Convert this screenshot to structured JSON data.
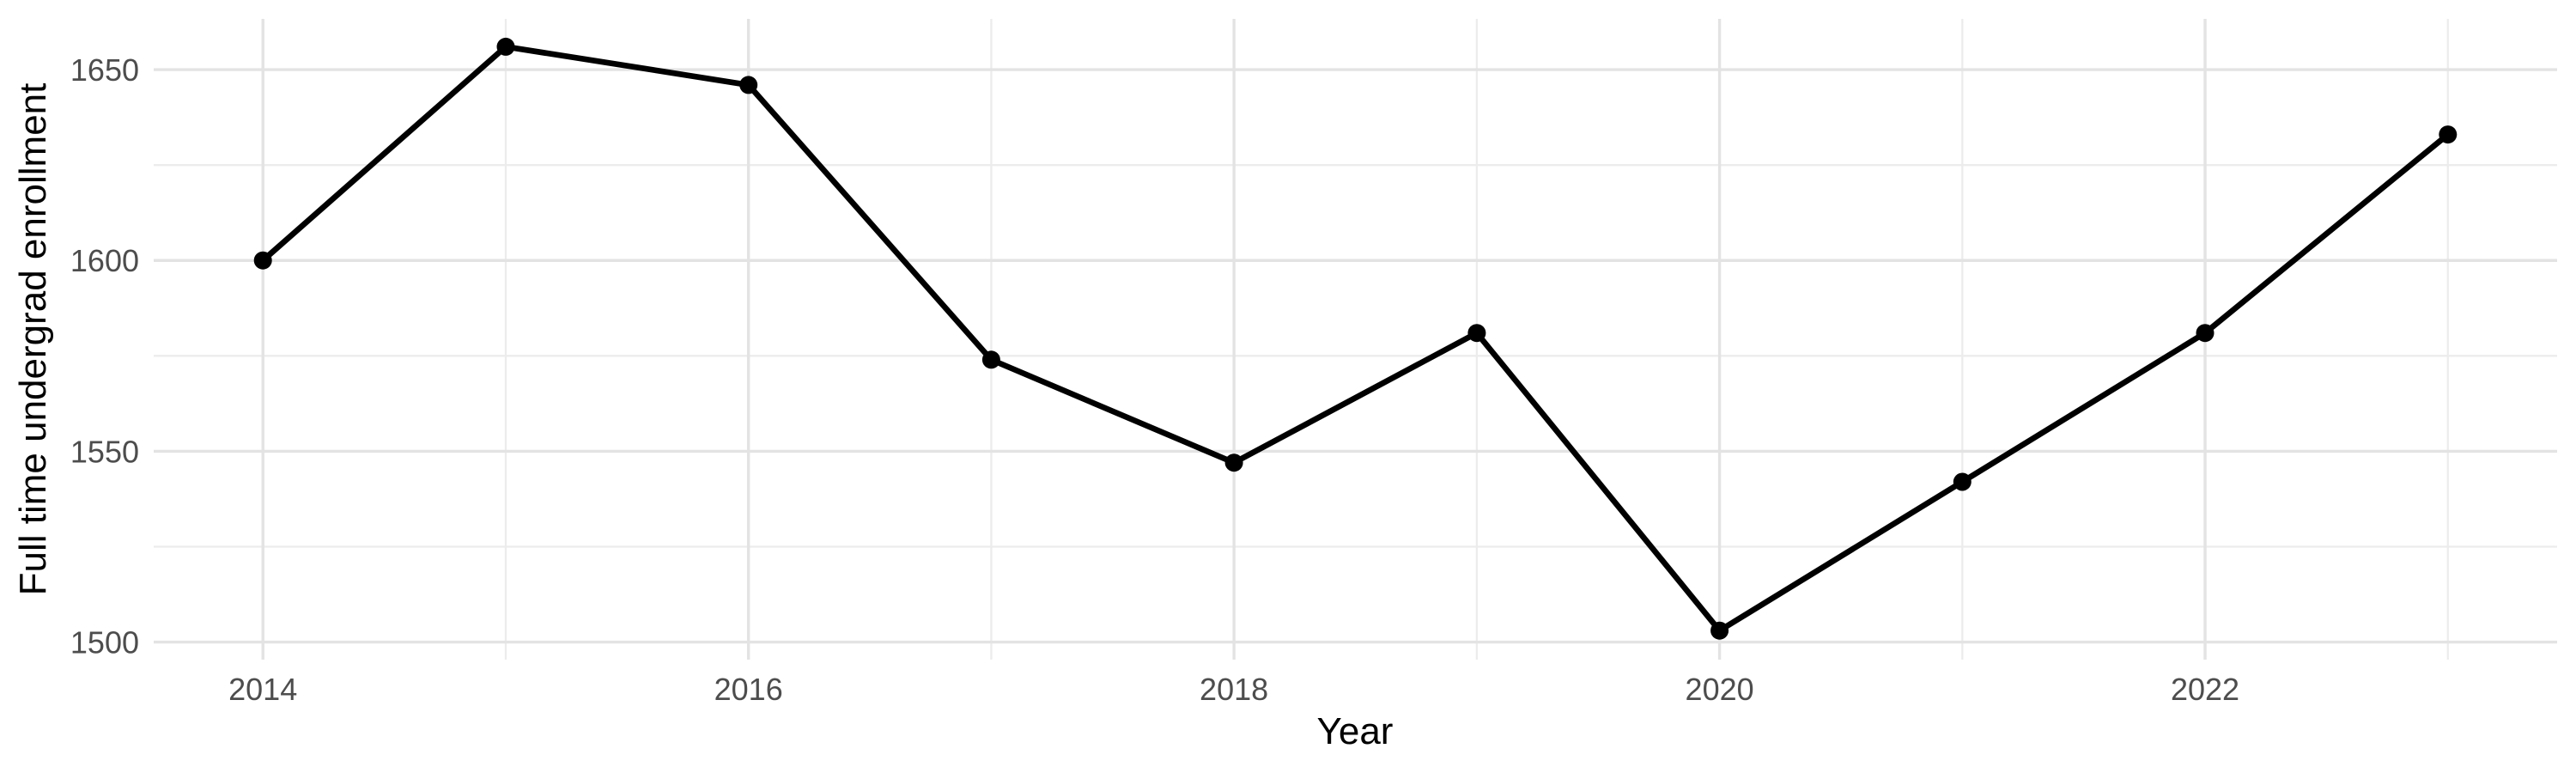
{
  "chart_data": {
    "type": "line",
    "title": "",
    "xlabel": "Year",
    "ylabel": "Full time undergrad enrollment",
    "series": [
      {
        "name": "Full time undergrad enrollment",
        "x": [
          2014,
          2015,
          2016,
          2017,
          2018,
          2019,
          2020,
          2021,
          2022,
          2023
        ],
        "y": [
          1600,
          1656,
          1646,
          1574,
          1547,
          1581,
          1503,
          1542,
          1581,
          1633
        ]
      }
    ],
    "x_tick_labels": [
      "2014",
      "2016",
      "2018",
      "2020",
      "2022"
    ],
    "x_ticks": [
      2014,
      2016,
      2018,
      2020,
      2022
    ],
    "x_minor_gridlines": [
      2015,
      2017,
      2019,
      2021,
      2023
    ],
    "y_tick_labels": [
      "1500",
      "1550",
      "1600",
      "1650"
    ],
    "y_ticks": [
      1500,
      1550,
      1600,
      1650
    ],
    "y_minor_gridlines": [
      1525,
      1575,
      1625
    ],
    "xlim": [
      2013.55,
      2023.45
    ],
    "ylim": [
      1495.4,
      1663.3
    ],
    "grid": "major+minor",
    "legend_position": "none",
    "point_marker": "filled-circle",
    "colors": {
      "line": "#000000",
      "point": "#000000",
      "grid_major": "#e3e3e3",
      "grid_minor": "#ececec",
      "tick_label": "#4d4d4d",
      "axis_title": "#000000",
      "background": "#ffffff"
    }
  }
}
